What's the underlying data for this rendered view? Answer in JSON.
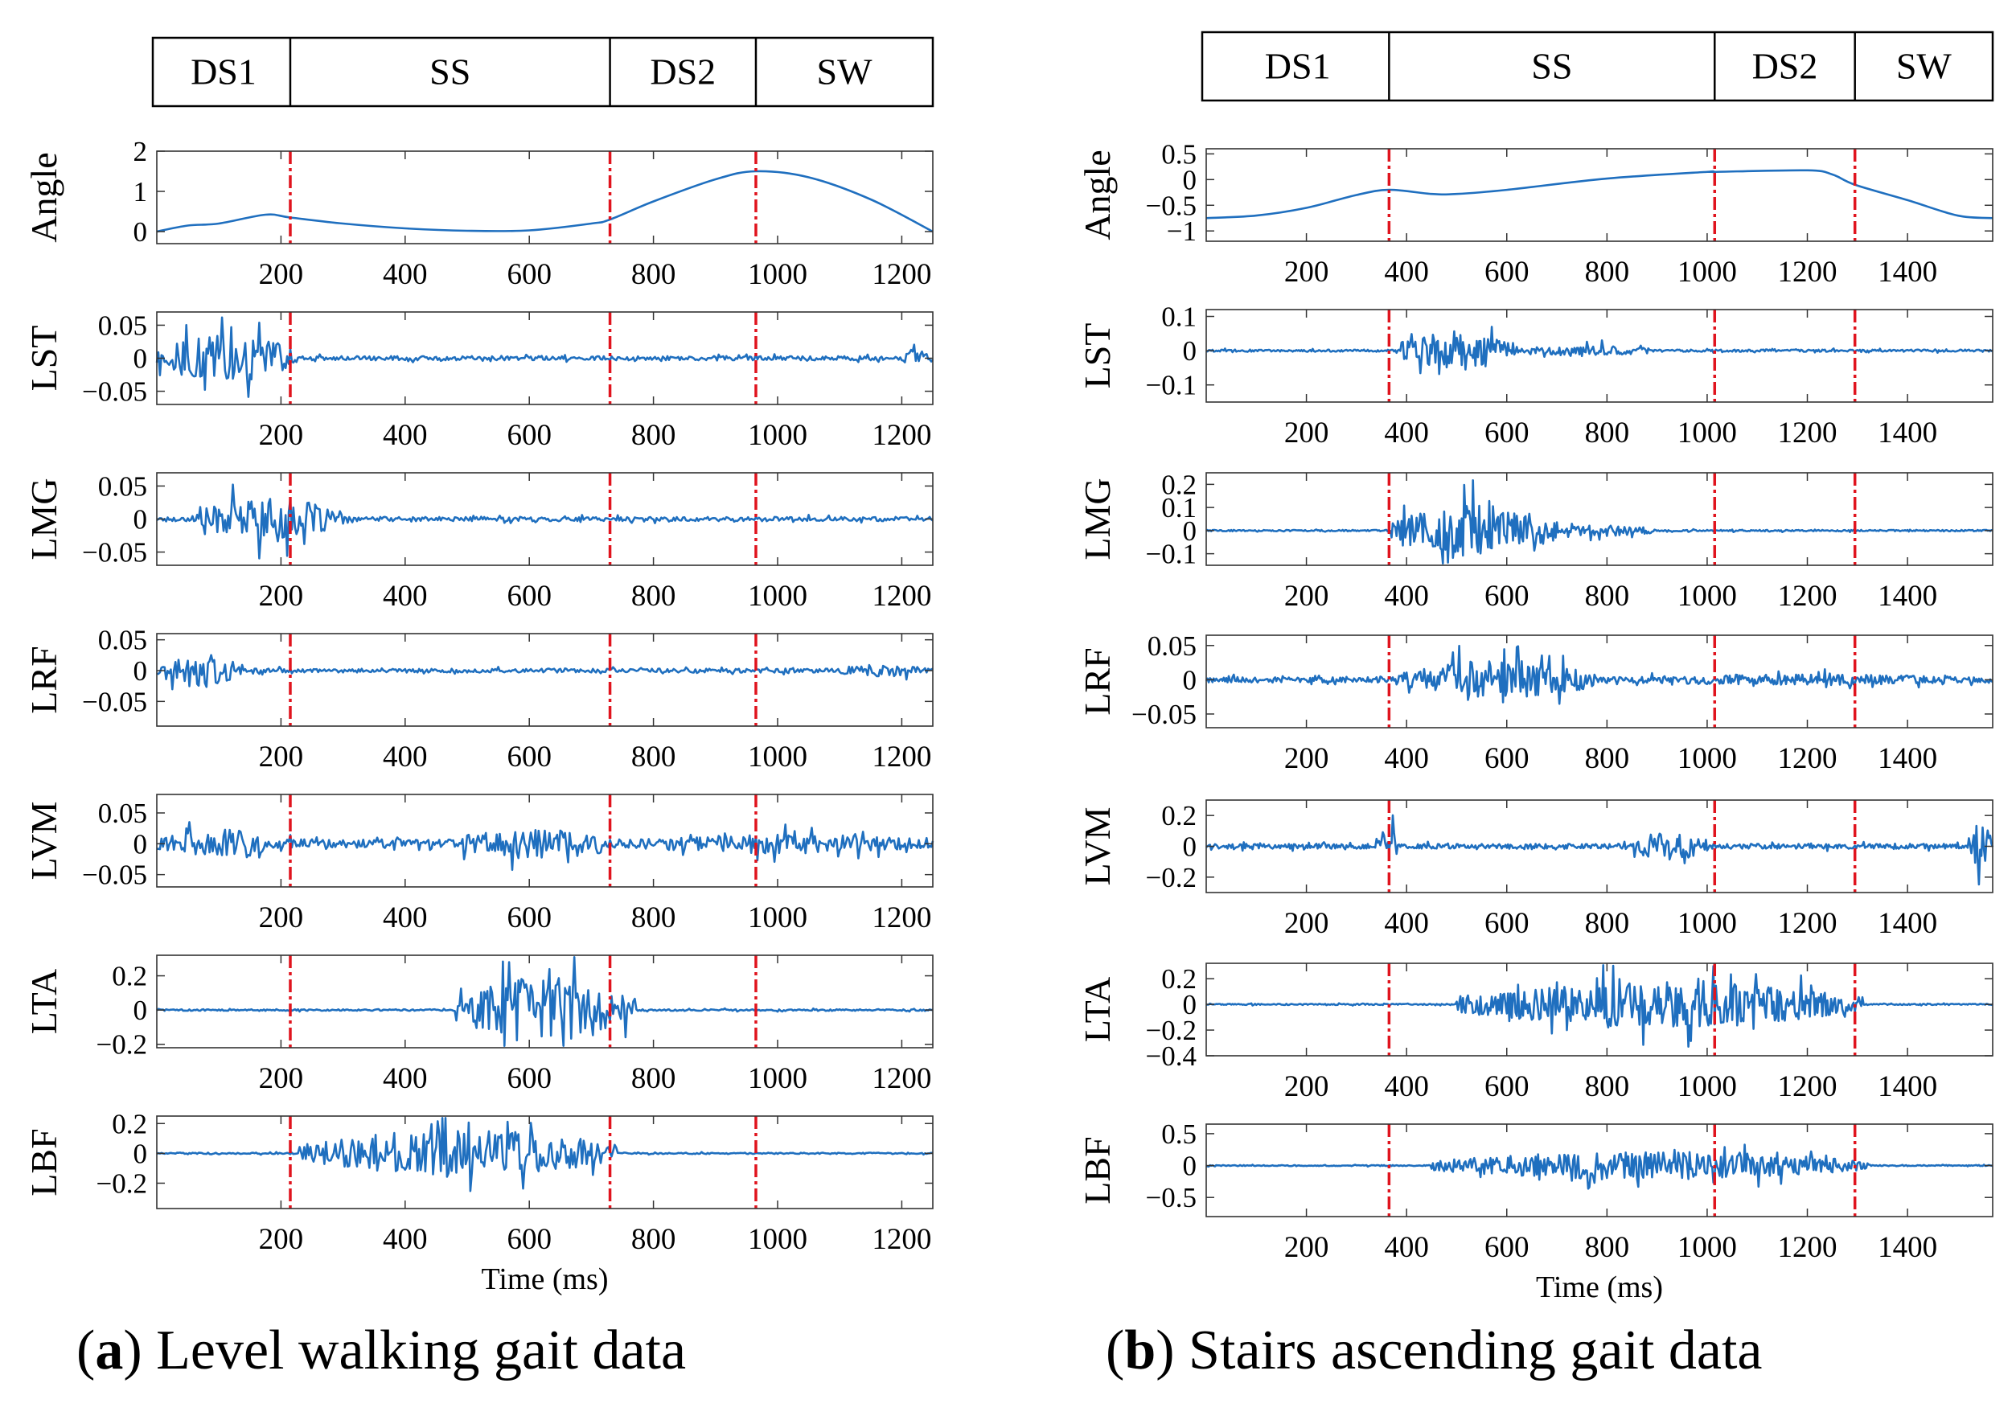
{
  "figure": {
    "captions": [
      {
        "letter": "a",
        "text": ") Level walking gait data"
      },
      {
        "letter": "b",
        "text": ") Stairs ascending gait data"
      }
    ],
    "colors": {
      "signal": "#1f6fbf",
      "marker": "#e0141e",
      "axis": "#333333"
    }
  },
  "chart_data": [
    {
      "type": "line",
      "panel": "a",
      "title": "Level walking gait data",
      "xlabel": "Time (ms)",
      "xlim": [
        0,
        1250
      ],
      "xticks": [
        200,
        400,
        600,
        800,
        1000,
        1200
      ],
      "phase_bar": [
        {
          "label": "DS1",
          "start": 0,
          "end": 215
        },
        {
          "label": "SS",
          "start": 215,
          "end": 730
        },
        {
          "label": "DS2",
          "start": 730,
          "end": 965
        },
        {
          "label": "SW",
          "start": 965,
          "end": 1250
        }
      ],
      "phase_lines": [
        215,
        730,
        965
      ],
      "series": [
        {
          "name": "Angle",
          "ylim": [
            -0.3,
            2
          ],
          "yticks": [
            0,
            1,
            2
          ],
          "ytick_labels": [
            "0",
            "1",
            "2"
          ],
          "x": [
            0,
            50,
            100,
            175,
            215,
            300,
            400,
            500,
            600,
            700,
            730,
            800,
            900,
            965,
            1050,
            1150,
            1250
          ],
          "values": [
            0,
            0.15,
            0.2,
            0.42,
            0.35,
            0.2,
            0.08,
            0.02,
            0.03,
            0.2,
            0.3,
            0.75,
            1.3,
            1.5,
            1.35,
            0.8,
            0
          ]
        },
        {
          "name": "LST",
          "ylim": [
            -0.07,
            0.07
          ],
          "yticks": [
            0.05,
            0,
            -0.05
          ],
          "ytick_labels": [
            "0.05",
            "0",
            "−0.05"
          ],
          "bursts": [
            {
              "start": 0,
              "end": 220,
              "amp": 0.045
            },
            {
              "start": 1200,
              "end": 1250,
              "amp": 0.015
            }
          ],
          "noise": 0.004
        },
        {
          "name": "LMG",
          "ylim": [
            -0.07,
            0.07
          ],
          "yticks": [
            0.05,
            0,
            -0.05
          ],
          "ytick_labels": [
            "0.05",
            "0",
            "−0.05"
          ],
          "bursts": [
            {
              "start": 60,
              "end": 300,
              "amp": 0.04
            }
          ],
          "noise": 0.004
        },
        {
          "name": "LRF",
          "ylim": [
            -0.09,
            0.06
          ],
          "yticks": [
            0.05,
            0,
            -0.05
          ],
          "ytick_labels": [
            "0.05",
            "0",
            "−0.05"
          ],
          "bursts": [
            {
              "start": 0,
              "end": 140,
              "amp": 0.035
            },
            {
              "start": 1080,
              "end": 1250,
              "amp": 0.012
            }
          ],
          "noise": 0.004
        },
        {
          "name": "LVM",
          "ylim": [
            -0.07,
            0.08
          ],
          "yticks": [
            0.05,
            0,
            -0.05
          ],
          "ytick_labels": [
            "0.05",
            "0",
            "−0.05"
          ],
          "bursts": [
            {
              "start": 0,
              "end": 200,
              "amp": 0.03
            },
            {
              "start": 470,
              "end": 720,
              "amp": 0.03
            },
            {
              "start": 750,
              "end": 1250,
              "amp": 0.02
            }
          ],
          "noise": 0.009
        },
        {
          "name": "LTA",
          "ylim": [
            -0.22,
            0.32
          ],
          "yticks": [
            0.2,
            0,
            -0.2
          ],
          "ytick_labels": [
            "0.2",
            "0",
            "−0.2"
          ],
          "bursts": [
            {
              "start": 480,
              "end": 770,
              "amp": 0.24
            }
          ],
          "noise": 0.006
        },
        {
          "name": "LBF",
          "ylim": [
            -0.37,
            0.25
          ],
          "yticks": [
            0.2,
            0,
            -0.2
          ],
          "ytick_labels": [
            "0.2",
            "0",
            "−0.2"
          ],
          "bursts": [
            {
              "start": 230,
              "end": 740,
              "amp": 0.2
            }
          ],
          "noise": 0.006
        }
      ]
    },
    {
      "type": "line",
      "panel": "b",
      "title": "Stairs ascending gait data",
      "xlabel": "Time (ms)",
      "xlim": [
        0,
        1570
      ],
      "xticks": [
        200,
        400,
        600,
        800,
        1000,
        1200,
        1400
      ],
      "phase_bar": [
        {
          "label": "DS1",
          "start": 0,
          "end": 365
        },
        {
          "label": "SS",
          "start": 365,
          "end": 1015
        },
        {
          "label": "DS2",
          "start": 1015,
          "end": 1295
        },
        {
          "label": "SW",
          "start": 1295,
          "end": 1570
        }
      ],
      "phase_lines": [
        365,
        1015,
        1295
      ],
      "series": [
        {
          "name": "Angle",
          "ylim": [
            -1.2,
            0.6
          ],
          "yticks": [
            0.5,
            0,
            -0.5,
            -1
          ],
          "ytick_labels": [
            "0.5",
            "0",
            "−0.5",
            "−1"
          ],
          "x": [
            0,
            100,
            200,
            300,
            365,
            450,
            500,
            600,
            800,
            1000,
            1015,
            1200,
            1250,
            1295,
            1400,
            1500,
            1570
          ],
          "values": [
            -0.75,
            -0.7,
            -0.55,
            -0.3,
            -0.2,
            -0.28,
            -0.28,
            -0.2,
            0.02,
            0.15,
            0.15,
            0.18,
            0.1,
            -0.1,
            -0.4,
            -0.7,
            -0.75
          ]
        },
        {
          "name": "LST",
          "ylim": [
            -0.15,
            0.12
          ],
          "yticks": [
            0.1,
            0,
            -0.1
          ],
          "ytick_labels": [
            "0.1",
            "0",
            "−0.1"
          ],
          "bursts": [
            {
              "start": 380,
              "end": 620,
              "amp": 0.07
            },
            {
              "start": 620,
              "end": 900,
              "amp": 0.02
            }
          ],
          "noise": 0.004
        },
        {
          "name": "LMG",
          "ylim": [
            -0.15,
            0.25
          ],
          "yticks": [
            0.2,
            0.1,
            0,
            -0.1
          ],
          "ytick_labels": [
            "0.2",
            "0.1",
            "0",
            "−0.1"
          ],
          "bursts": [
            {
              "start": 370,
              "end": 700,
              "amp": 0.14
            },
            {
              "start": 700,
              "end": 900,
              "amp": 0.03
            }
          ],
          "noise": 0.004
        },
        {
          "name": "LRF",
          "ylim": [
            -0.07,
            0.065
          ],
          "yticks": [
            0.05,
            0,
            -0.05
          ],
          "ytick_labels": [
            "0.05",
            "0",
            "−0.05"
          ],
          "bursts": [
            {
              "start": 380,
              "end": 780,
              "amp": 0.035
            },
            {
              "start": 780,
              "end": 1570,
              "amp": 0.01
            }
          ],
          "noise": 0.005
        },
        {
          "name": "LVM",
          "ylim": [
            -0.3,
            0.3
          ],
          "yticks": [
            0.2,
            0,
            -0.2
          ],
          "ytick_labels": [
            "0.2",
            "0",
            "−0.2"
          ],
          "bursts": [
            {
              "start": 340,
              "end": 380,
              "amp": 0.2
            },
            {
              "start": 850,
              "end": 1000,
              "amp": 0.12
            },
            {
              "start": 1520,
              "end": 1570,
              "amp": 0.18
            }
          ],
          "noise": 0.02
        },
        {
          "name": "LTA",
          "ylim": [
            -0.4,
            0.32
          ],
          "yticks": [
            0.2,
            0,
            -0.2,
            -0.4
          ],
          "ytick_labels": [
            "0.2",
            "0",
            "−0.2",
            "−0.4"
          ],
          "bursts": [
            {
              "start": 500,
              "end": 1310,
              "amp": 0.22
            }
          ],
          "noise": 0.006
        },
        {
          "name": "LBF",
          "ylim": [
            -0.8,
            0.65
          ],
          "yticks": [
            0.5,
            0,
            -0.5
          ],
          "ytick_labels": [
            "0.5",
            "0",
            "−0.5"
          ],
          "bursts": [
            {
              "start": 450,
              "end": 1320,
              "amp": 0.28
            }
          ],
          "noise": 0.01
        }
      ]
    }
  ]
}
